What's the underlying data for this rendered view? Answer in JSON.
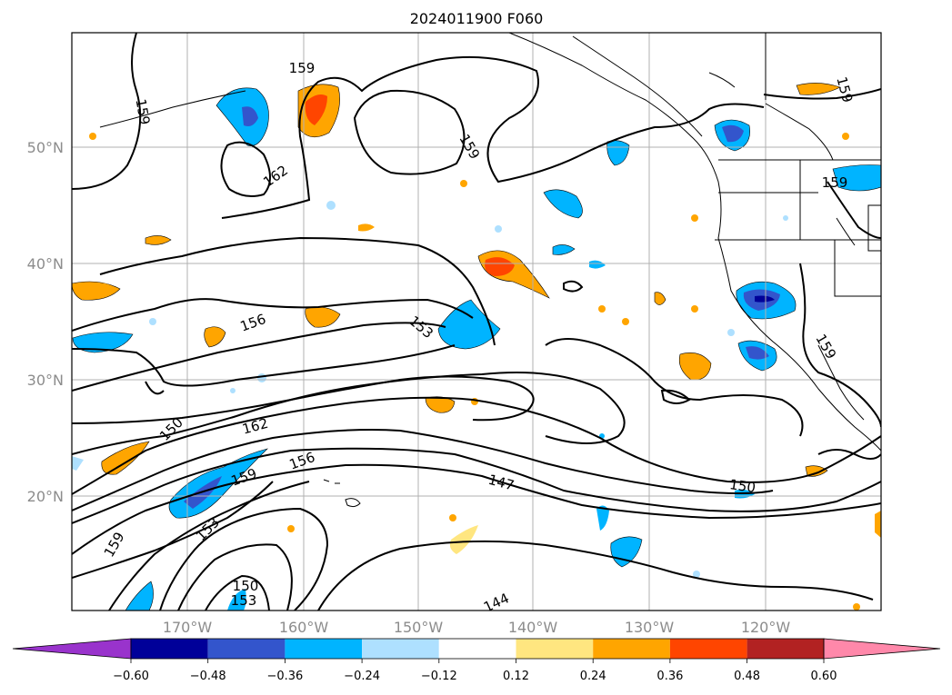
{
  "title": "2024011900 F060",
  "map": {
    "lat_labels": [
      "50°N",
      "40°N",
      "30°N",
      "20°N"
    ],
    "lon_labels": [
      "170°W",
      "160°W",
      "150°W",
      "140°W",
      "130°W",
      "120°W"
    ],
    "grid": true,
    "contour_labels": [
      "159",
      "159",
      "162",
      "159",
      "159",
      "159",
      "156",
      "153",
      "150",
      "162",
      "156",
      "159",
      "153",
      "159",
      "147",
      "150",
      "150",
      "153",
      "144",
      "159"
    ]
  },
  "colorbar": {
    "ticks": [
      "−0.60",
      "−0.48",
      "−0.36",
      "−0.24",
      "−0.12",
      "0.12",
      "0.24",
      "0.36",
      "0.48",
      "0.60"
    ],
    "colors": [
      "#9933cc",
      "#000099",
      "#3355cc",
      "#00b4ff",
      "#aee0ff",
      "#ffffff",
      "#ffe680",
      "#ffa500",
      "#ff4500",
      "#b22222",
      "#ff88aa"
    ]
  }
}
